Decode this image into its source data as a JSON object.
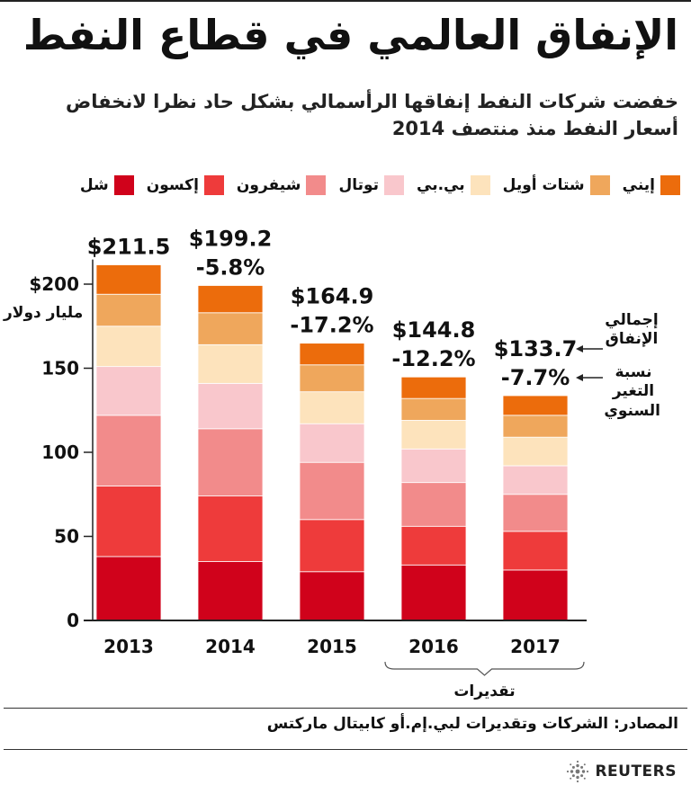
{
  "chart_data": {
    "type": "bar",
    "stacked": true,
    "title": "الإنفاق العالمي في قطاع النفط",
    "subtitle": "خفضت شركات النفط إنفاقها الرأسمالي بشكل حاد نظرا لانخفاض أسعار النفط منذ منتصف 2014",
    "ylabel": "مليار دولار",
    "ylim": [
      0,
      220
    ],
    "yticks": [
      {
        "value": 0,
        "label": "0"
      },
      {
        "value": 50,
        "label": "50"
      },
      {
        "value": 100,
        "label": "100"
      },
      {
        "value": 150,
        "label": "150"
      },
      {
        "value": 200,
        "label": "$200"
      }
    ],
    "categories": [
      "2013",
      "2014",
      "2015",
      "2016",
      "2017"
    ],
    "series": [
      {
        "name": "شل",
        "color": "#d0021b",
        "values": [
          38,
          35,
          29,
          33,
          30
        ]
      },
      {
        "name": "إكسون",
        "color": "#ee3b3b",
        "values": [
          42,
          39,
          31,
          23,
          23
        ]
      },
      {
        "name": "شيفرون",
        "color": "#f28b8b",
        "values": [
          42,
          40,
          34,
          26,
          22
        ]
      },
      {
        "name": "توتال",
        "color": "#f9c7cc",
        "values": [
          29,
          27,
          23,
          20,
          17
        ]
      },
      {
        "name": "بي.بي",
        "color": "#fde3bc",
        "values": [
          24,
          23,
          19,
          17,
          17
        ]
      },
      {
        "name": "شتات أويل",
        "color": "#efa75c",
        "values": [
          19,
          19,
          16,
          13,
          13
        ]
      },
      {
        "name": "إيني",
        "color": "#ec6c0c",
        "values": [
          17.5,
          16.2,
          12.9,
          12.8,
          11.7
        ]
      }
    ],
    "totals": [
      "$211.5",
      "$199.2",
      "$164.9",
      "$144.8",
      "$133.7"
    ],
    "changes": [
      "",
      "-5.8%",
      "-17.2%",
      "-12.2%",
      "-7.7%"
    ],
    "annotations": {
      "total": "إجمالي الإنفاق",
      "change": "نسبة التغير السنوي",
      "estimates": "تقديرات"
    },
    "estimate_categories": [
      "2016",
      "2017"
    ]
  },
  "legend_order": [
    6,
    5,
    4,
    3,
    2,
    1,
    0
  ],
  "footer": {
    "source": "المصادر: الشركات وتقديرات لبي.إم.أو كابيتال ماركتس",
    "brand": "REUTERS"
  }
}
